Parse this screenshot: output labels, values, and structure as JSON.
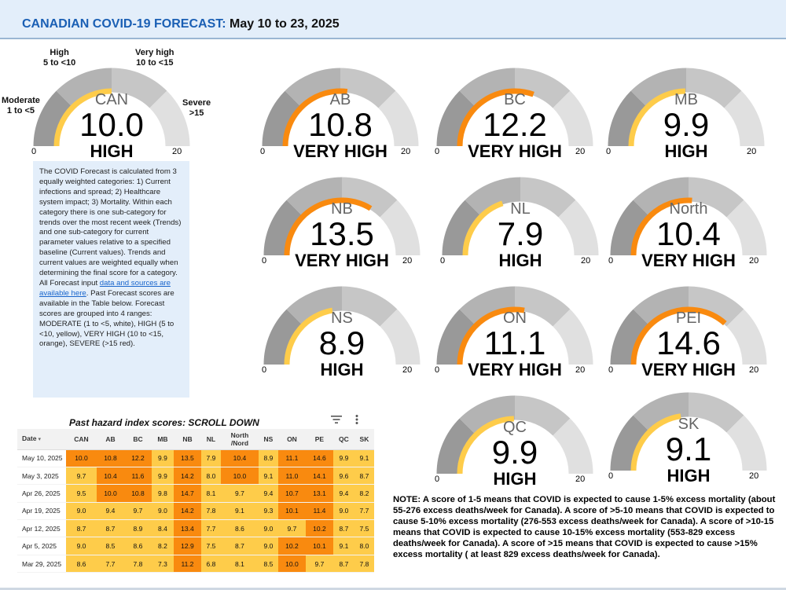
{
  "header": {
    "title_prefix": "CANADIAN COVID-19 FORECAST:",
    "title_dates": "May 10 to 23, 2025"
  },
  "colors": {
    "high": "#fecc4a",
    "very_high": "#f98a0f",
    "moderate": "#ffffff",
    "severe": "#d62828",
    "accent_blue": "#1a5fb4",
    "panel_bg": "#e3eefa"
  },
  "gauge_scale": {
    "min": "0",
    "max": "20"
  },
  "scale_labels": {
    "moderate": {
      "name": "Moderate",
      "range": "1 to <5"
    },
    "high": {
      "name": "High",
      "range": "5 to <10"
    },
    "very_high": {
      "name": "Very high",
      "range": "10 to <15"
    },
    "severe": {
      "name": "Severe",
      "range": ">15"
    }
  },
  "gauges": {
    "CAN": {
      "region": "CAN",
      "score": "10.0",
      "level": "HIGH",
      "value": 10.0,
      "color": "#fecc4a"
    },
    "AB": {
      "region": "AB",
      "score": "10.8",
      "level": "VERY HIGH",
      "value": 10.8,
      "color": "#f98a0f"
    },
    "BC": {
      "region": "BC",
      "score": "12.2",
      "level": "VERY HIGH",
      "value": 12.2,
      "color": "#f98a0f"
    },
    "MB": {
      "region": "MB",
      "score": "9.9",
      "level": "HIGH",
      "value": 9.9,
      "color": "#fecc4a"
    },
    "NB": {
      "region": "NB",
      "score": "13.5",
      "level": "VERY HIGH",
      "value": 13.5,
      "color": "#f98a0f"
    },
    "NL": {
      "region": "NL",
      "score": "7.9",
      "level": "HIGH",
      "value": 7.9,
      "color": "#fecc4a"
    },
    "North": {
      "region": "North",
      "score": "10.4",
      "level": "VERY HIGH",
      "value": 10.4,
      "color": "#f98a0f"
    },
    "NS": {
      "region": "NS",
      "score": "8.9",
      "level": "HIGH",
      "value": 8.9,
      "color": "#fecc4a"
    },
    "ON": {
      "region": "ON",
      "score": "11.1",
      "level": "VERY HIGH",
      "value": 11.1,
      "color": "#f98a0f"
    },
    "PEI": {
      "region": "PEI",
      "score": "14.6",
      "level": "VERY HIGH",
      "value": 14.6,
      "color": "#f98a0f"
    },
    "QC": {
      "region": "QC",
      "score": "9.9",
      "level": "HIGH",
      "value": 9.9,
      "color": "#fecc4a"
    },
    "SK": {
      "region": "SK",
      "score": "9.1",
      "level": "HIGH",
      "value": 9.1,
      "color": "#fecc4a"
    }
  },
  "info": {
    "text_before_link": "The COVID Forecast is calculated from 3 equally weighted categories: 1) Current infections and spread; 2) Healthcare system impact; 3) Mortality. Within each category there is one sub-category for trends over the most recent week (Trends) and one sub-category for current parameter values relative to a specified baseline (Current values). Trends and current values are weighted equally when determining the final score for a category. All Forecast input ",
    "link_text": "data and sources are available here",
    "text_after_link": ". Past Forecast scores are available in the Table below. Forecast scores are grouped into 4 ranges: MODERATE (1 to <5, white), HIGH (5 to <10, yellow), VERY HIGH (10 to <15, orange), SEVERE (>15 red)."
  },
  "table": {
    "title": "Past hazard index scores: SCROLL DOWN",
    "columns": [
      "Date",
      "CAN",
      "AB",
      "BC",
      "MB",
      "NB",
      "NL",
      "North /Nord",
      "NS",
      "ON",
      "PE",
      "QC",
      "SK"
    ],
    "rows": [
      [
        "May 10, 2025",
        "10.0",
        "10.8",
        "12.2",
        "9.9",
        "13.5",
        "7.9",
        "10.4",
        "8.9",
        "11.1",
        "14.6",
        "9.9",
        "9.1"
      ],
      [
        "May 3, 2025",
        "9.7",
        "10.4",
        "11.6",
        "9.9",
        "14.2",
        "8.0",
        "10.0",
        "9.1",
        "11.0",
        "14.1",
        "9.6",
        "8.7"
      ],
      [
        "Apr 26, 2025",
        "9.5",
        "10.0",
        "10.8",
        "9.8",
        "14.7",
        "8.1",
        "9.7",
        "9.4",
        "10.7",
        "13.1",
        "9.4",
        "8.2"
      ],
      [
        "Apr 19, 2025",
        "9.0",
        "9.4",
        "9.7",
        "9.0",
        "14.2",
        "7.8",
        "9.1",
        "9.3",
        "10.1",
        "11.4",
        "9.0",
        "7.7"
      ],
      [
        "Apr 12, 2025",
        "8.7",
        "8.7",
        "8.9",
        "8.4",
        "13.4",
        "7.7",
        "8.6",
        "9.0",
        "9.7",
        "10.2",
        "8.7",
        "7.5"
      ],
      [
        "Apr 5, 2025",
        "9.0",
        "8.5",
        "8.6",
        "8.2",
        "12.9",
        "7.5",
        "8.7",
        "9.0",
        "10.2",
        "10.1",
        "9.1",
        "8.0"
      ],
      [
        "Mar 29, 2025",
        "8.6",
        "7.7",
        "7.8",
        "7.3",
        "11.2",
        "6.8",
        "8.1",
        "8.5",
        "10.0",
        "9.7",
        "8.7",
        "7.8"
      ]
    ]
  },
  "note": "NOTE: A score of 1-5 means that COVID is expected to cause 1-5% excess mortality (about 55-276 excess deaths/week for Canada). A score of >5-10 means that COVID is expected to cause 5-10% excess mortality (276-553 excess deaths/week for Canada). A score of >10-15 means that COVID is expected to cause 10-15% excess mortality (553-829 excess deaths/week for Canada). A score of >15 means that COVID is expected to cause >15% excess mortality ( at least 829 excess deaths/week for Canada)."
}
